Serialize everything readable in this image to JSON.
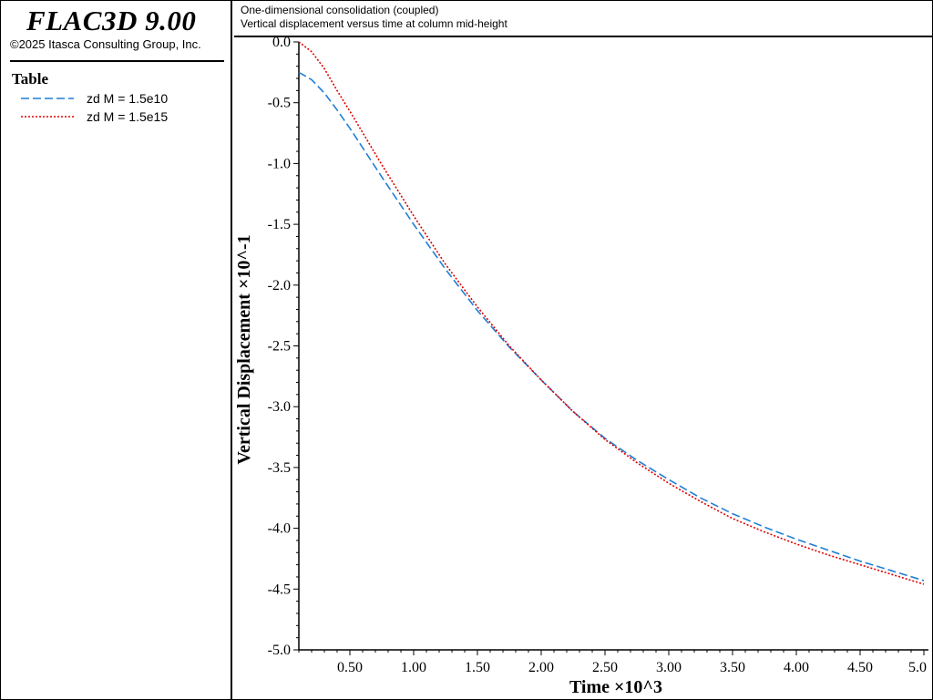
{
  "app": {
    "title": "FLAC3D 9.00",
    "copyright": "©2025 Itasca Consulting Group, Inc."
  },
  "legend": {
    "title": "Table",
    "items": [
      {
        "label": "zd M = 1.5e10",
        "color": "#1f7fd6",
        "style": "dashed"
      },
      {
        "label": "zd M = 1.5e15",
        "color": "#e00000",
        "style": "dotted"
      }
    ]
  },
  "header": {
    "line1": "One-dimensional consolidation (coupled)",
    "line2": "Vertical displacement versus time at column mid-height"
  },
  "chart_data": {
    "type": "line",
    "xlabel": "Time ×10^3",
    "ylabel": "Vertical Displacement ×10^-1",
    "xlim": [
      0.1,
      5.0
    ],
    "ylim": [
      -5.0,
      0.0
    ],
    "x_ticks": [
      "0.50",
      "1.00",
      "1.50",
      "2.00",
      "2.50",
      "3.00",
      "3.50",
      "4.00",
      "4.50",
      "5.0"
    ],
    "x_tick_values": [
      0.5,
      1.0,
      1.5,
      2.0,
      2.5,
      3.0,
      3.5,
      4.0,
      4.5,
      5.0
    ],
    "y_ticks": [
      "0.0",
      "-0.5",
      "-1.0",
      "-1.5",
      "-2.0",
      "-2.5",
      "-3.0",
      "-3.5",
      "-4.0",
      "-4.5",
      "-5.0"
    ],
    "y_tick_values": [
      0.0,
      -0.5,
      -1.0,
      -1.5,
      -2.0,
      -2.5,
      -3.0,
      -3.5,
      -4.0,
      -4.5,
      -5.0
    ],
    "grid": false,
    "legend_position": "left-panel",
    "series": [
      {
        "name": "zd M = 1.5e10",
        "color": "#1f7fd6",
        "dash": "9,4",
        "x": [
          0.1,
          0.2,
          0.3,
          0.4,
          0.5,
          0.75,
          1.0,
          1.25,
          1.5,
          1.75,
          2.0,
          2.25,
          2.5,
          2.75,
          3.0,
          3.25,
          3.5,
          3.75,
          4.0,
          4.25,
          4.5,
          4.75,
          5.0
        ],
        "y": [
          -0.25,
          -0.31,
          -0.42,
          -0.56,
          -0.71,
          -1.11,
          -1.5,
          -1.87,
          -2.21,
          -2.51,
          -2.78,
          -3.04,
          -3.26,
          -3.44,
          -3.6,
          -3.75,
          -3.88,
          -3.99,
          -4.09,
          -4.18,
          -4.27,
          -4.35,
          -4.43
        ]
      },
      {
        "name": "zd M = 1.5e15",
        "color": "#e00000",
        "dash": "2,2",
        "x": [
          0.1,
          0.2,
          0.3,
          0.4,
          0.5,
          0.75,
          1.0,
          1.25,
          1.5,
          1.75,
          2.0,
          2.25,
          2.5,
          2.75,
          3.0,
          3.25,
          3.5,
          3.75,
          4.0,
          4.25,
          4.5,
          4.75,
          5.0
        ],
        "y": [
          0.0,
          -0.08,
          -0.22,
          -0.4,
          -0.57,
          -1.01,
          -1.43,
          -1.83,
          -2.18,
          -2.5,
          -2.78,
          -3.04,
          -3.27,
          -3.46,
          -3.63,
          -3.78,
          -3.92,
          -4.03,
          -4.13,
          -4.22,
          -4.3,
          -4.38,
          -4.46
        ]
      }
    ]
  }
}
